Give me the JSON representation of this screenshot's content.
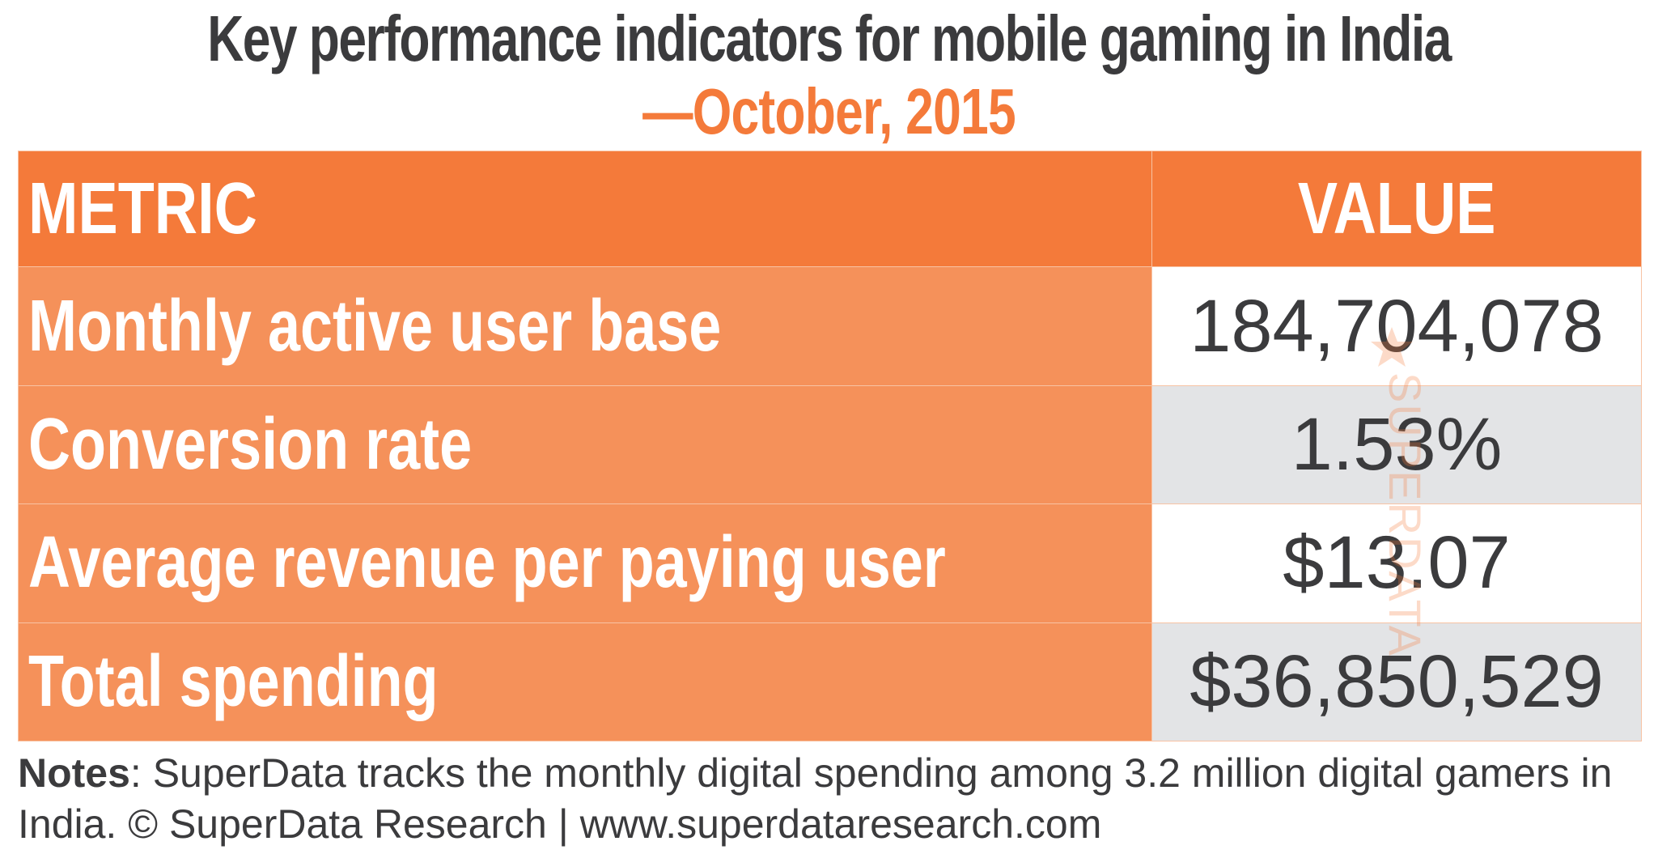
{
  "chart_data": {
    "type": "table",
    "title": "Key performance indicators for mobile gaming in India",
    "subtitle": "—October, 2015",
    "columns": [
      "METRIC",
      "VALUE"
    ],
    "rows": [
      {
        "metric": "Monthly active user base",
        "value": "184,704,078"
      },
      {
        "metric": "Conversion rate",
        "value": "1.53%"
      },
      {
        "metric": "Average revenue per paying user",
        "value": "$13.07"
      },
      {
        "metric": "Total spending",
        "value": "$36,850,529"
      }
    ],
    "watermark": "SUPERDATA",
    "notes_label": "Notes",
    "notes_text": ": SuperData tracks the monthly digital spending among 3.2 million digital gamers in India. © SuperData Research | www.superdataresearch.com"
  },
  "colors": {
    "header_orange": "#f47a3a",
    "row_orange": "#f5915a",
    "text_dark": "#3b3b3d",
    "alt_row_gray": "#e3e4e6"
  },
  "icons": {
    "watermark_icon": "star-icon"
  }
}
